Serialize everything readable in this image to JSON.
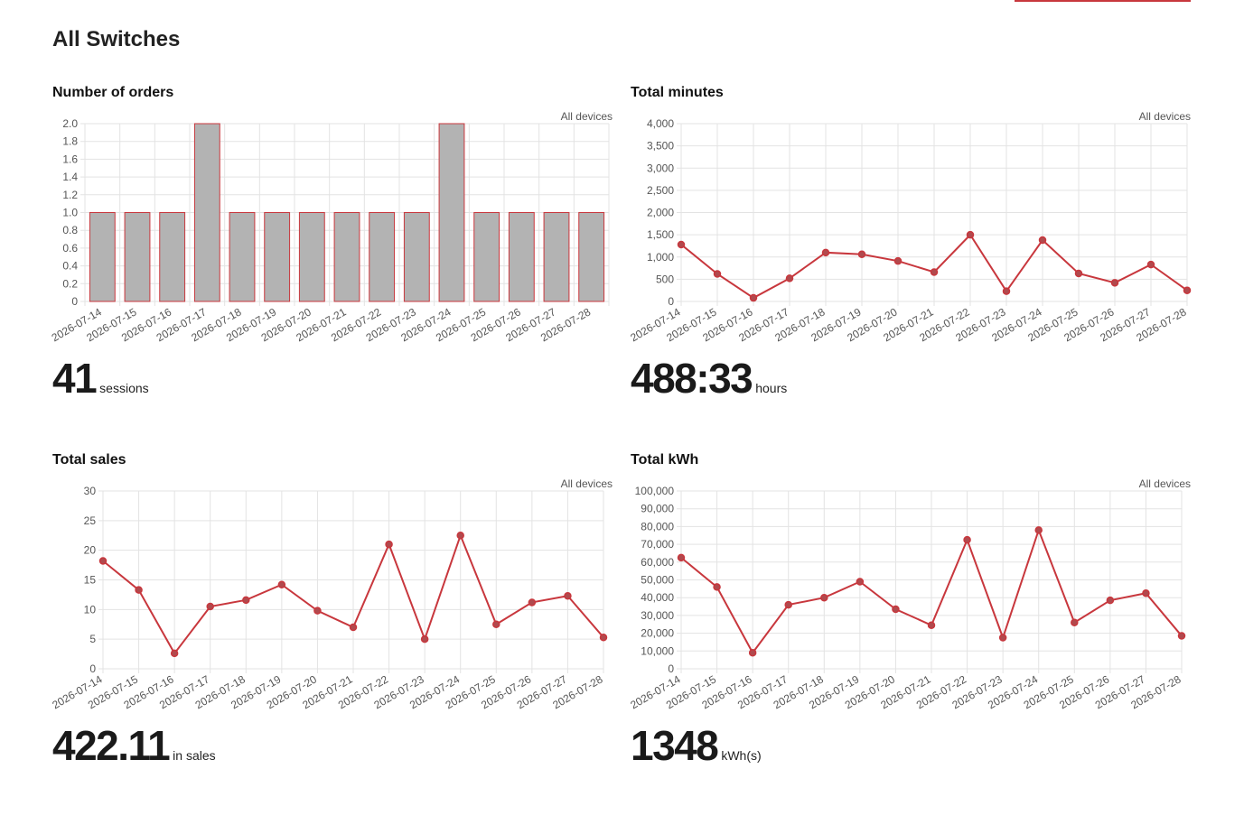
{
  "page": {
    "title": "All Switches"
  },
  "colors": {
    "accent": "#c8373d",
    "bar_fill": "#b3b3b3",
    "grid": "#e3e3e3",
    "axis_text": "#555555"
  },
  "chart_data": [
    {
      "type": "bar",
      "title": "Number of orders",
      "subtitle": "All devices",
      "categories": [
        "2026-07-14",
        "2026-07-15",
        "2026-07-16",
        "2026-07-17",
        "2026-07-18",
        "2026-07-19",
        "2026-07-20",
        "2026-07-21",
        "2026-07-22",
        "2026-07-23",
        "2026-07-24",
        "2026-07-25",
        "2026-07-26",
        "2026-07-27",
        "2026-07-28"
      ],
      "values": [
        1,
        1,
        1,
        2,
        1,
        1,
        1,
        1,
        1,
        1,
        2,
        1,
        1,
        1,
        1
      ],
      "yticks": [
        "2.0",
        "1.8",
        "1.6",
        "1.4",
        "1.2",
        "1.0",
        "0.8",
        "0.6",
        "0.4",
        "0.2",
        "0"
      ],
      "ylim": [
        0,
        2
      ],
      "grid": true,
      "stat": {
        "value": "41",
        "unit": "sessions"
      }
    },
    {
      "type": "line",
      "title": "Total minutes",
      "subtitle": "All devices",
      "categories": [
        "2026-07-14",
        "2026-07-15",
        "2026-07-16",
        "2026-07-17",
        "2026-07-18",
        "2026-07-19",
        "2026-07-20",
        "2026-07-21",
        "2026-07-22",
        "2026-07-23",
        "2026-07-24",
        "2026-07-25",
        "2026-07-26",
        "2026-07-27",
        "2026-07-28"
      ],
      "values": [
        1280,
        620,
        80,
        520,
        1100,
        1060,
        910,
        660,
        1500,
        230,
        1380,
        630,
        420,
        830,
        250
      ],
      "yticks": [
        "4,000",
        "3,500",
        "3,000",
        "2,500",
        "2,000",
        "1,500",
        "1,000",
        "500",
        "0"
      ],
      "ylim": [
        0,
        4000
      ],
      "grid": true,
      "stat": {
        "value": "488:33",
        "unit": "hours"
      }
    },
    {
      "type": "line",
      "title": "Total sales",
      "subtitle": "All devices",
      "categories": [
        "2026-07-14",
        "2026-07-15",
        "2026-07-16",
        "2026-07-17",
        "2026-07-18",
        "2026-07-19",
        "2026-07-20",
        "2026-07-21",
        "2026-07-22",
        "2026-07-23",
        "2026-07-24",
        "2026-07-25",
        "2026-07-26",
        "2026-07-27",
        "2026-07-28"
      ],
      "values": [
        18.2,
        13.3,
        2.6,
        10.5,
        11.6,
        14.2,
        9.8,
        7.0,
        21.0,
        5.0,
        22.5,
        7.5,
        11.2,
        12.3,
        5.3
      ],
      "yticks": [
        "30",
        "25",
        "20",
        "15",
        "10",
        "5",
        "0"
      ],
      "ylim": [
        0,
        30
      ],
      "grid": true,
      "stat": {
        "value": "422.11",
        "unit": "in sales"
      }
    },
    {
      "type": "line",
      "title": "Total kWh",
      "subtitle": "All devices",
      "categories": [
        "2026-07-14",
        "2026-07-15",
        "2026-07-16",
        "2026-07-17",
        "2026-07-18",
        "2026-07-19",
        "2026-07-20",
        "2026-07-21",
        "2026-07-22",
        "2026-07-23",
        "2026-07-24",
        "2026-07-25",
        "2026-07-26",
        "2026-07-27",
        "2026-07-28"
      ],
      "values": [
        62500,
        46000,
        9000,
        36000,
        40000,
        49000,
        33500,
        24500,
        72500,
        17500,
        78000,
        26000,
        38500,
        42500,
        18500
      ],
      "yticks": [
        "100,000",
        "90,000",
        "80,000",
        "70,000",
        "60,000",
        "50,000",
        "40,000",
        "30,000",
        "20,000",
        "10,000",
        "0"
      ],
      "ylim": [
        0,
        100000
      ],
      "grid": true,
      "stat": {
        "value": "1348",
        "unit": "kWh(s)"
      }
    }
  ]
}
